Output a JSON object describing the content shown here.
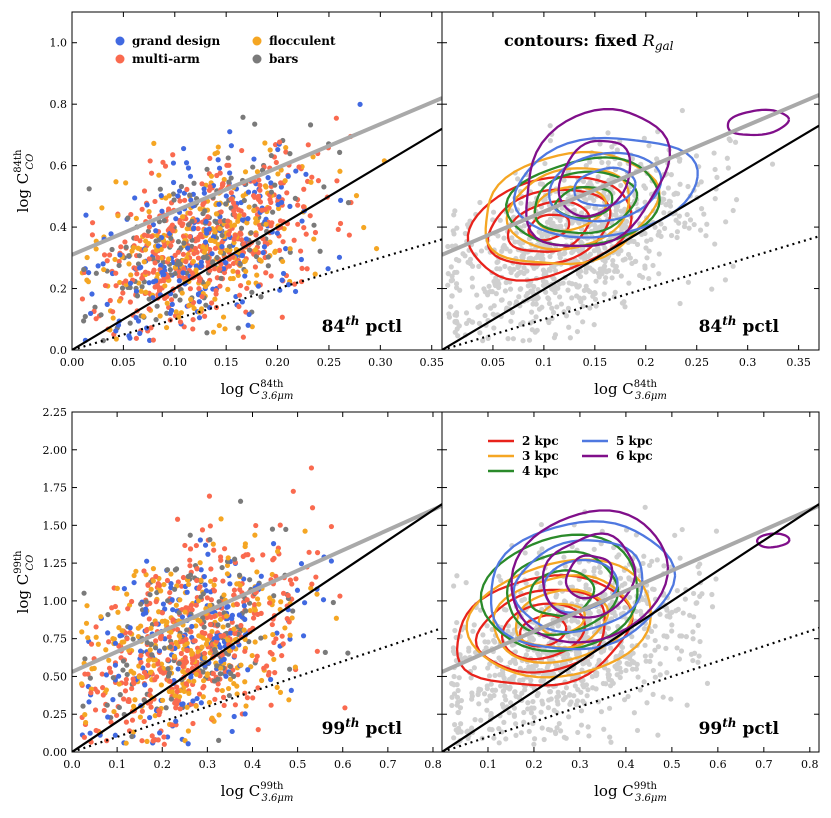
{
  "chart_data": [
    {
      "id": "tl",
      "type": "scatter",
      "xlim": [
        0,
        0.36
      ],
      "ylim": [
        0,
        1.1
      ],
      "xticks": [
        "0.00",
        "0.05",
        "0.10",
        "0.15",
        "0.20",
        "0.25",
        "0.30",
        "0.35"
      ],
      "xtick_vals": [
        0,
        0.05,
        0.1,
        0.15,
        0.2,
        0.25,
        0.3,
        0.35
      ],
      "yticks": [
        "0.0",
        "0.2",
        "0.4",
        "0.6",
        "0.8",
        "1.0"
      ],
      "ytick_vals": [
        0,
        0.2,
        0.4,
        0.6,
        0.8,
        1.0
      ],
      "ylabel_main": "log C",
      "ylabel_sub": "CO",
      "ylabel_sup": "84th",
      "xlabel_main": "log C",
      "xlabel_sub": "3.6μm",
      "xlabel_sup": "84th",
      "annotation": {
        "main": "84",
        "sup": "th",
        "rest": " pctl"
      },
      "fit_line": [
        [
          0,
          0.31
        ],
        [
          0.36,
          0.82
        ]
      ],
      "one_to_one": [
        [
          0,
          0
        ],
        [
          0.36,
          0.72
        ]
      ],
      "dotted_line": [
        [
          0,
          0
        ],
        [
          0.36,
          0.36
        ]
      ],
      "scatter": {
        "seed": 11,
        "n": 1050,
        "xc": 0.13,
        "xs": 0.055,
        "xmin": 0.01,
        "xmax": 0.35,
        "slope": 1.15,
        "icpt": 0.35,
        "noise": 0.13,
        "ymin": 0.03,
        "ymax": 0.97,
        "groups": [
          {
            "name": "grand design",
            "color": "#4169e1",
            "weight": 0.2
          },
          {
            "name": "multi-arm",
            "color": "#fa6a4f",
            "weight": 0.4
          },
          {
            "name": "flocculent",
            "color": "#f5a623",
            "weight": 0.25
          },
          {
            "name": "bars",
            "color": "#7a7a7a",
            "weight": 0.15
          }
        ]
      },
      "legend": [
        {
          "label": "grand design",
          "color": "#4169e1"
        },
        {
          "label": "flocculent",
          "color": "#f5a623"
        },
        {
          "label": "multi-arm",
          "color": "#fa6a4f"
        },
        {
          "label": "bars",
          "color": "#7a7a7a"
        }
      ]
    },
    {
      "id": "tr",
      "type": "scatter+contour",
      "xlim": [
        0,
        0.37
      ],
      "ylim": [
        0,
        1.1
      ],
      "xticks": [
        "0.05",
        "0.1",
        "0.15",
        "0.2",
        "0.25",
        "0.3",
        "0.35"
      ],
      "xtick_vals": [
        0.05,
        0.1,
        0.15,
        0.2,
        0.25,
        0.3,
        0.35
      ],
      "yticks": [],
      "ytick_vals": [
        0,
        0.2,
        0.4,
        0.6,
        0.8,
        1.0
      ],
      "xlabel_main": "log C",
      "xlabel_sub": "3.6μm",
      "xlabel_sup": "84th",
      "title": "contours: fixed ",
      "title_sym": "R",
      "title_sub": "gal",
      "annotation": {
        "main": "84",
        "sup": "th",
        "rest": " pctl"
      },
      "fit_line": [
        [
          0,
          0.31
        ],
        [
          0.37,
          0.83
        ]
      ],
      "one_to_one": [
        [
          0,
          0
        ],
        [
          0.37,
          0.73
        ]
      ],
      "dotted_line": [
        [
          0,
          0
        ],
        [
          0.37,
          0.37
        ]
      ],
      "scatter": {
        "seed": 23,
        "n": 900,
        "xc": 0.13,
        "xs": 0.06,
        "xmin": 0.005,
        "xmax": 0.36,
        "slope": 1.15,
        "icpt": 0.35,
        "noise": 0.13,
        "ymin": 0.03,
        "ymax": 0.97,
        "groups": [
          {
            "name": "all",
            "color": "#cfcfcf",
            "weight": 1
          }
        ]
      },
      "contours": [
        {
          "name": "2 kpc",
          "color": "#e8221b",
          "cx": 0.105,
          "cy": 0.4,
          "rx": [
            0.08,
            0.06,
            0.04,
            0.02
          ],
          "ry": [
            0.16,
            0.12,
            0.08,
            0.04
          ],
          "tilt": 0.5
        },
        {
          "name": "3 kpc",
          "color": "#f5a623",
          "cx": 0.125,
          "cy": 0.46,
          "rx": [
            0.085,
            0.06,
            0.035
          ],
          "ry": [
            0.18,
            0.13,
            0.07
          ],
          "tilt": 0.4
        },
        {
          "name": "4 kpc",
          "color": "#2a8a2a",
          "cx": 0.14,
          "cy": 0.48,
          "rx": [
            0.075,
            0.05,
            0.028
          ],
          "ry": [
            0.14,
            0.1,
            0.05
          ],
          "tilt": 0.3
        },
        {
          "name": "5 kpc",
          "color": "#4f78e0",
          "cx": 0.16,
          "cy": 0.53,
          "rx": [
            0.09,
            0.055,
            0.03
          ],
          "ry": [
            0.16,
            0.11,
            0.06
          ],
          "tilt": 0.35
        },
        {
          "name": "6 kpc",
          "color": "#800f8a",
          "cx": 0.15,
          "cy": 0.56,
          "rx": [
            0.07,
            0.035
          ],
          "ry": [
            0.22,
            0.12
          ],
          "tilt": 0.5
        },
        {
          "name": "6 kpc",
          "color": "#800f8a",
          "cx": 0.31,
          "cy": 0.74,
          "rx": [
            0.03
          ],
          "ry": [
            0.04
          ],
          "tilt": 0.4
        }
      ]
    },
    {
      "id": "bl",
      "type": "scatter",
      "xlim": [
        0,
        0.82
      ],
      "ylim": [
        0,
        2.25
      ],
      "xticks": [
        "0.0",
        "0.1",
        "0.2",
        "0.3",
        "0.4",
        "0.5",
        "0.6",
        "0.7",
        "0.8"
      ],
      "xtick_vals": [
        0,
        0.1,
        0.2,
        0.3,
        0.4,
        0.5,
        0.6,
        0.7,
        0.8
      ],
      "yticks": [
        "0.00",
        "0.25",
        "0.50",
        "0.75",
        "1.00",
        "1.25",
        "1.50",
        "1.75",
        "2.00",
        "2.25"
      ],
      "ytick_vals": [
        0,
        0.25,
        0.5,
        0.75,
        1.0,
        1.25,
        1.5,
        1.75,
        2.0,
        2.25
      ],
      "ylabel_main": "log C",
      "ylabel_sub": "CO",
      "ylabel_sup": "99th",
      "xlabel_main": "log C",
      "xlabel_sub": "3.6μm",
      "xlabel_sup": "99th",
      "annotation": {
        "main": "99",
        "sup": "th",
        "rest": " pctl"
      },
      "fit_line": [
        [
          0,
          0.53
        ],
        [
          0.82,
          1.63
        ]
      ],
      "one_to_one": [
        [
          0,
          0
        ],
        [
          0.82,
          1.64
        ]
      ],
      "dotted_line": [
        [
          0,
          0
        ],
        [
          0.82,
          0.82
        ]
      ],
      "scatter": {
        "seed": 37,
        "n": 1050,
        "xc": 0.27,
        "xs": 0.12,
        "xmin": 0.02,
        "xmax": 0.8,
        "slope": 0.95,
        "icpt": 0.72,
        "noise": 0.28,
        "ymin": 0.05,
        "ymax": 2.05,
        "groups": [
          {
            "name": "grand design",
            "color": "#4169e1",
            "weight": 0.2
          },
          {
            "name": "multi-arm",
            "color": "#fa6a4f",
            "weight": 0.4
          },
          {
            "name": "flocculent",
            "color": "#f5a623",
            "weight": 0.25
          },
          {
            "name": "bars",
            "color": "#7a7a7a",
            "weight": 0.15
          }
        ]
      }
    },
    {
      "id": "br",
      "type": "scatter+contour",
      "xlim": [
        0,
        0.82
      ],
      "ylim": [
        0,
        2.25
      ],
      "xticks": [
        "0.1",
        "0.2",
        "0.3",
        "0.4",
        "0.5",
        "0.6",
        "0.7",
        "0.8"
      ],
      "xtick_vals": [
        0.1,
        0.2,
        0.3,
        0.4,
        0.5,
        0.6,
        0.7,
        0.8
      ],
      "yticks": [],
      "ytick_vals": [
        0,
        0.25,
        0.5,
        0.75,
        1.0,
        1.25,
        1.5,
        1.75,
        2.0,
        2.25
      ],
      "xlabel_main": "log C",
      "xlabel_sub": "3.6μm",
      "xlabel_sup": "99th",
      "annotation": {
        "main": "99",
        "sup": "th",
        "rest": " pctl"
      },
      "fit_line": [
        [
          0,
          0.53
        ],
        [
          0.82,
          1.63
        ]
      ],
      "one_to_one": [
        [
          0,
          0
        ],
        [
          0.82,
          1.64
        ]
      ],
      "dotted_line": [
        [
          0,
          0
        ],
        [
          0.82,
          0.82
        ]
      ],
      "scatter": {
        "seed": 51,
        "n": 900,
        "xc": 0.28,
        "xs": 0.14,
        "xmin": 0.02,
        "xmax": 0.81,
        "slope": 0.95,
        "icpt": 0.72,
        "noise": 0.28,
        "ymin": 0.05,
        "ymax": 2.05,
        "groups": [
          {
            "name": "all",
            "color": "#cfcfcf",
            "weight": 1
          }
        ]
      },
      "contours": [
        {
          "name": "2 kpc",
          "color": "#e8221b",
          "cx": 0.22,
          "cy": 0.8,
          "rx": [
            0.19,
            0.14,
            0.09,
            0.05
          ],
          "ry": [
            0.36,
            0.27,
            0.18,
            0.1
          ],
          "tilt": 0.35
        },
        {
          "name": "3 kpc",
          "color": "#f5a623",
          "cx": 0.26,
          "cy": 0.88,
          "rx": [
            0.2,
            0.15,
            0.1,
            0.05
          ],
          "ry": [
            0.38,
            0.28,
            0.19,
            0.1
          ],
          "tilt": 0.3
        },
        {
          "name": "4 kpc",
          "color": "#2a8a2a",
          "cx": 0.26,
          "cy": 1.05,
          "rx": [
            0.17,
            0.12,
            0.07
          ],
          "ry": [
            0.38,
            0.27,
            0.15
          ],
          "tilt": 0.2
        },
        {
          "name": "5 kpc",
          "color": "#4f78e0",
          "cx": 0.3,
          "cy": 1.1,
          "rx": [
            0.2,
            0.14,
            0.08
          ],
          "ry": [
            0.42,
            0.3,
            0.17
          ],
          "tilt": 0.25
        },
        {
          "name": "6 kpc",
          "color": "#800f8a",
          "cx": 0.32,
          "cy": 1.16,
          "rx": [
            0.17,
            0.1,
            0.05
          ],
          "ry": [
            0.43,
            0.27,
            0.14
          ],
          "tilt": 0.25
        },
        {
          "name": "6 kpc",
          "color": "#800f8a",
          "cx": 0.72,
          "cy": 1.4,
          "rx": [
            0.035
          ],
          "ry": [
            0.045
          ],
          "tilt": 0.2
        }
      ],
      "legend": [
        {
          "label": "2 kpc",
          "color": "#e8221b"
        },
        {
          "label": "3 kpc",
          "color": "#f5a623"
        },
        {
          "label": "4 kpc",
          "color": "#2a8a2a"
        },
        {
          "label": "5 kpc",
          "color": "#4f78e0"
        },
        {
          "label": "6 kpc",
          "color": "#800f8a"
        }
      ]
    }
  ]
}
